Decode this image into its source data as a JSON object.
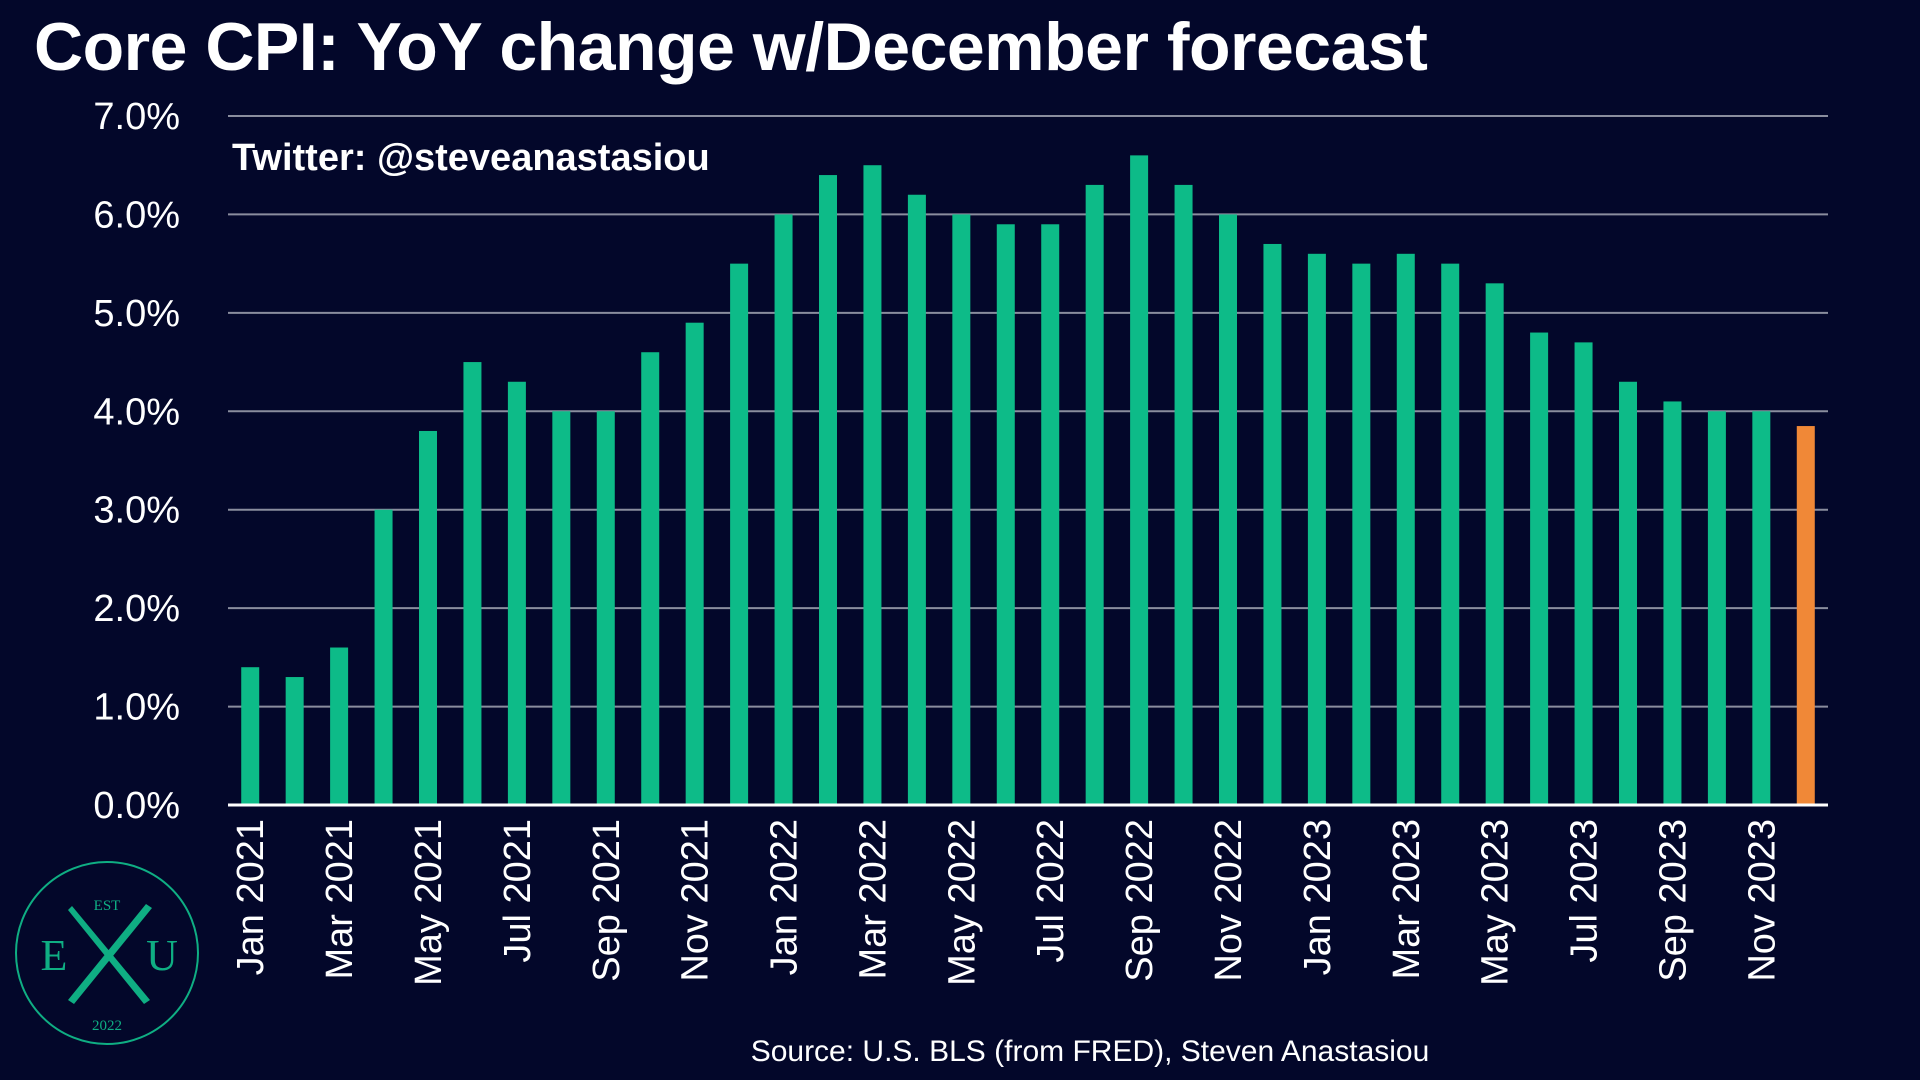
{
  "title": "Core CPI: YoY change w/December forecast",
  "credit": "Twitter: @steveanastasiou",
  "source": "Source: U.S. BLS (from FRED), Steven Anastasiou",
  "logo": {
    "top_text": "EST",
    "left_letter": "E",
    "center_letter": "X",
    "right_letter": "U",
    "bottom_text": "2022",
    "color": "#0fae83"
  },
  "colors": {
    "background": "#03072a",
    "actual_bar": "#0dbb88",
    "forecast_bar": "#f08837",
    "gridline": "#8a8d9e",
    "text": "#ffffff"
  },
  "chart_data": {
    "type": "bar",
    "title": "Core CPI: YoY change w/December forecast",
    "xlabel": "",
    "ylabel": "",
    "ylim": [
      0,
      7
    ],
    "yticks": [
      {
        "value": 0,
        "label": "0.0%"
      },
      {
        "value": 1,
        "label": "1.0%"
      },
      {
        "value": 2,
        "label": "2.0%"
      },
      {
        "value": 3,
        "label": "3.0%"
      },
      {
        "value": 4,
        "label": "4.0%"
      },
      {
        "value": 5,
        "label": "5.0%"
      },
      {
        "value": 6,
        "label": "6.0%"
      },
      {
        "value": 7,
        "label": "7.0%"
      }
    ],
    "grid": true,
    "legend": "none",
    "categories": [
      "Jan 2021",
      "Feb 2021",
      "Mar 2021",
      "Apr 2021",
      "May 2021",
      "Jun 2021",
      "Jul 2021",
      "Aug 2021",
      "Sep 2021",
      "Oct 2021",
      "Nov 2021",
      "Dec 2021",
      "Jan 2022",
      "Feb 2022",
      "Mar 2022",
      "Apr 2022",
      "May 2022",
      "Jun 2022",
      "Jul 2022",
      "Aug 2022",
      "Sep 2022",
      "Oct 2022",
      "Nov 2022",
      "Dec 2022",
      "Jan 2023",
      "Feb 2023",
      "Mar 2023",
      "Apr 2023",
      "May 2023",
      "Jun 2023",
      "Jul 2023",
      "Aug 2023",
      "Sep 2023",
      "Oct 2023",
      "Nov 2023",
      "Dec 2023"
    ],
    "tick_labels": [
      "Jan 2021",
      "",
      "Mar 2021",
      "",
      "May 2021",
      "",
      "Jul 2021",
      "",
      "Sep 2021",
      "",
      "Nov 2021",
      "",
      "Jan 2022",
      "",
      "Mar 2022",
      "",
      "May 2022",
      "",
      "Jul 2022",
      "",
      "Sep 2022",
      "",
      "Nov 2022",
      "",
      "Jan 2023",
      "",
      "Mar 2023",
      "",
      "May 2023",
      "",
      "Jul 2023",
      "",
      "Sep 2023",
      "",
      "Nov 2023",
      ""
    ],
    "values": [
      1.4,
      1.3,
      1.6,
      3.0,
      3.8,
      4.5,
      4.3,
      4.0,
      4.0,
      4.6,
      4.9,
      5.5,
      6.0,
      6.4,
      6.5,
      6.2,
      6.0,
      5.9,
      5.9,
      6.3,
      6.6,
      6.3,
      6.0,
      5.7,
      5.6,
      5.5,
      5.6,
      5.5,
      5.3,
      4.8,
      4.7,
      4.3,
      4.1,
      4.0,
      4.0,
      3.85
    ],
    "forecast": [
      false,
      false,
      false,
      false,
      false,
      false,
      false,
      false,
      false,
      false,
      false,
      false,
      false,
      false,
      false,
      false,
      false,
      false,
      false,
      false,
      false,
      false,
      false,
      false,
      false,
      false,
      false,
      false,
      false,
      false,
      false,
      false,
      false,
      false,
      false,
      true
    ]
  }
}
